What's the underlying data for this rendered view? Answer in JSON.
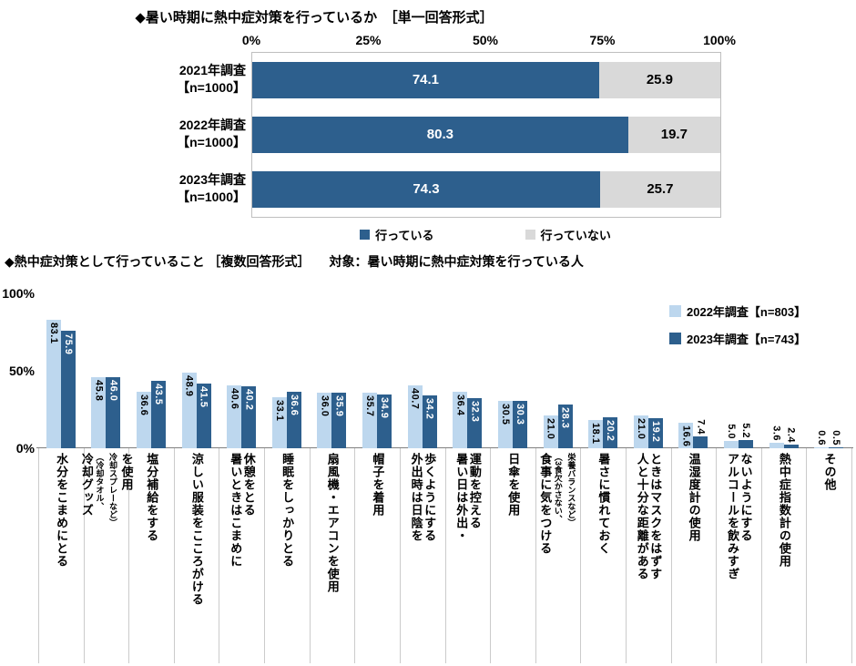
{
  "chart_data": [
    {
      "type": "bar",
      "orientation": "horizontal",
      "stacked": true,
      "title": "◆暑い時期に熱中症対策を行っているか　［単一回答形式］",
      "categories": [
        [
          "2021年調査",
          "【n=1000】"
        ],
        [
          "2022年調査",
          "【n=1000】"
        ],
        [
          "2023年調査",
          "【n=1000】"
        ]
      ],
      "series": [
        {
          "name": "行っている",
          "color": "#2D5F8D",
          "values": [
            74.1,
            80.3,
            74.3
          ]
        },
        {
          "name": "行っていない",
          "color": "#D9D9D9",
          "values": [
            25.9,
            19.7,
            25.7
          ]
        }
      ],
      "xlim": [
        0,
        100
      ],
      "x_ticks": [
        "0%",
        "25%",
        "50%",
        "75%",
        "100%"
      ],
      "legend_position": "bottom"
    },
    {
      "type": "bar",
      "orientation": "vertical",
      "grouped": true,
      "title": "◆熱中症対策として行っていること ［複数回答形式］　　対象：暑い時期に熱中症対策を行っている人",
      "categories": [
        {
          "text": "水分をこまめにとる"
        },
        {
          "text": "冷却グッズ\n",
          "small": "（冷却タオル、\n冷却スプレーなど）\n",
          "tail": "を使用"
        },
        {
          "text": "塩分補給をする"
        },
        {
          "text": "涼しい服装をこころがける"
        },
        {
          "text": "暑いときはこまめに\n休憩をとる"
        },
        {
          "text": "睡眠をしっかりとる"
        },
        {
          "text": "扇風機・エアコンを使用"
        },
        {
          "text": "帽子を着用"
        },
        {
          "text": "外出時は日陰を\n歩くようにする"
        },
        {
          "text": "暑い日は外出・\n運動を控える"
        },
        {
          "text": "日傘を使用"
        },
        {
          "text": "食事に気をつける\n",
          "small": "（3食欠かさない、\n栄養バランスなど）"
        },
        {
          "text": "暑さに慣れておく"
        },
        {
          "text": "人と十分な距離がある\nときはマスクをはずす"
        },
        {
          "text": "温湿度計の使用"
        },
        {
          "text": "アルコールを飲みすぎ\nないようにする"
        },
        {
          "text": "熱中症指数計の使用"
        },
        {
          "text": "その他"
        }
      ],
      "series": [
        {
          "name": "2022年調査【n=803】",
          "color": "#BDD7EE",
          "values": [
            83.1,
            45.8,
            36.6,
            48.9,
            40.6,
            33.1,
            36.0,
            35.7,
            40.7,
            36.4,
            30.5,
            21.0,
            18.1,
            21.0,
            16.6,
            5.0,
            3.6,
            0.6
          ]
        },
        {
          "name": "2023年調査【n=743】",
          "color": "#2D5F8D",
          "values": [
            75.9,
            46.0,
            43.5,
            41.5,
            40.2,
            36.6,
            35.9,
            34.9,
            34.2,
            32.3,
            30.3,
            28.3,
            20.2,
            19.2,
            7.4,
            5.2,
            2.4,
            0.5
          ]
        }
      ],
      "ylim": [
        0,
        100
      ],
      "y_ticks": [
        "0%",
        "50%",
        "100%"
      ],
      "legend_position": "top-right"
    }
  ]
}
